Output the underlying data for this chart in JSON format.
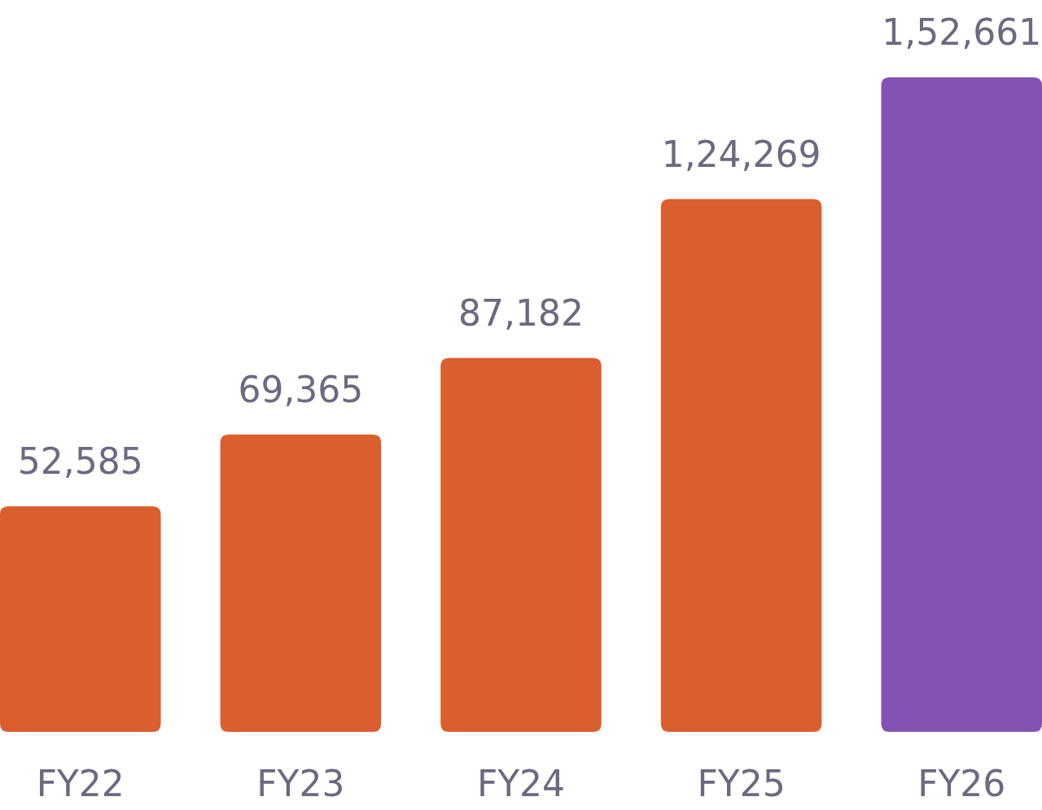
{
  "chart_data": {
    "type": "bar",
    "categories": [
      "FY22",
      "FY23",
      "FY24",
      "FY25",
      "FY26"
    ],
    "values": [
      52585,
      69365,
      87182,
      124269,
      152661
    ],
    "colors": [
      "#db5e2e",
      "#db5e2e",
      "#db5e2e",
      "#db5e2e",
      "#8352b5"
    ],
    "value_labels": [
      "52,585",
      "69,365",
      "87,182",
      "1,24,269",
      "1,52,661"
    ],
    "relative": false
  }
}
